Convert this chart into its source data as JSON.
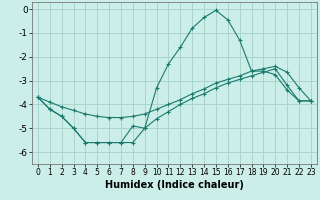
{
  "xlabel": "Humidex (Indice chaleur)",
  "bg_color": "#cceee8",
  "grid_color": "#aad4cc",
  "line_color": "#1a7a6e",
  "xlim": [
    -0.5,
    23.5
  ],
  "ylim": [
    -6.5,
    0.3
  ],
  "xticks": [
    0,
    1,
    2,
    3,
    4,
    5,
    6,
    7,
    8,
    9,
    10,
    11,
    12,
    13,
    14,
    15,
    16,
    17,
    18,
    19,
    20,
    21,
    22,
    23
  ],
  "yticks": [
    0,
    -1,
    -2,
    -3,
    -4,
    -5,
    -6
  ],
  "line1_x": [
    0,
    1,
    2,
    3,
    4,
    5,
    6,
    7,
    8,
    9,
    10,
    11,
    12,
    13,
    14,
    15,
    16,
    17,
    18,
    19,
    20,
    21,
    22,
    23
  ],
  "line1_y": [
    -3.7,
    -4.2,
    -4.5,
    -5.0,
    -5.6,
    -5.6,
    -5.6,
    -5.6,
    -4.9,
    -5.0,
    -3.3,
    -2.3,
    -1.6,
    -0.8,
    -0.35,
    -0.05,
    -0.45,
    -1.3,
    -2.6,
    -2.6,
    -2.75,
    -3.4,
    -3.85,
    -3.85
  ],
  "line2_x": [
    0,
    1,
    2,
    3,
    4,
    5,
    6,
    7,
    8,
    9,
    10,
    11,
    12,
    13,
    14,
    15,
    16,
    17,
    18,
    19,
    20,
    21,
    22,
    23
  ],
  "line2_y": [
    -3.7,
    -3.9,
    -4.1,
    -4.25,
    -4.4,
    -4.5,
    -4.55,
    -4.55,
    -4.5,
    -4.4,
    -4.2,
    -4.0,
    -3.8,
    -3.55,
    -3.35,
    -3.1,
    -2.95,
    -2.8,
    -2.6,
    -2.5,
    -2.4,
    -2.65,
    -3.3,
    -3.85
  ],
  "line3_x": [
    0,
    1,
    2,
    3,
    4,
    5,
    6,
    7,
    8,
    9,
    10,
    11,
    12,
    13,
    14,
    15,
    16,
    17,
    18,
    19,
    20,
    21,
    22,
    23
  ],
  "line3_y": [
    -3.7,
    -4.2,
    -4.5,
    -5.0,
    -5.6,
    -5.6,
    -5.6,
    -5.6,
    -5.6,
    -5.0,
    -4.6,
    -4.3,
    -4.0,
    -3.75,
    -3.55,
    -3.3,
    -3.1,
    -2.95,
    -2.8,
    -2.65,
    -2.5,
    -3.2,
    -3.85,
    -3.85
  ]
}
